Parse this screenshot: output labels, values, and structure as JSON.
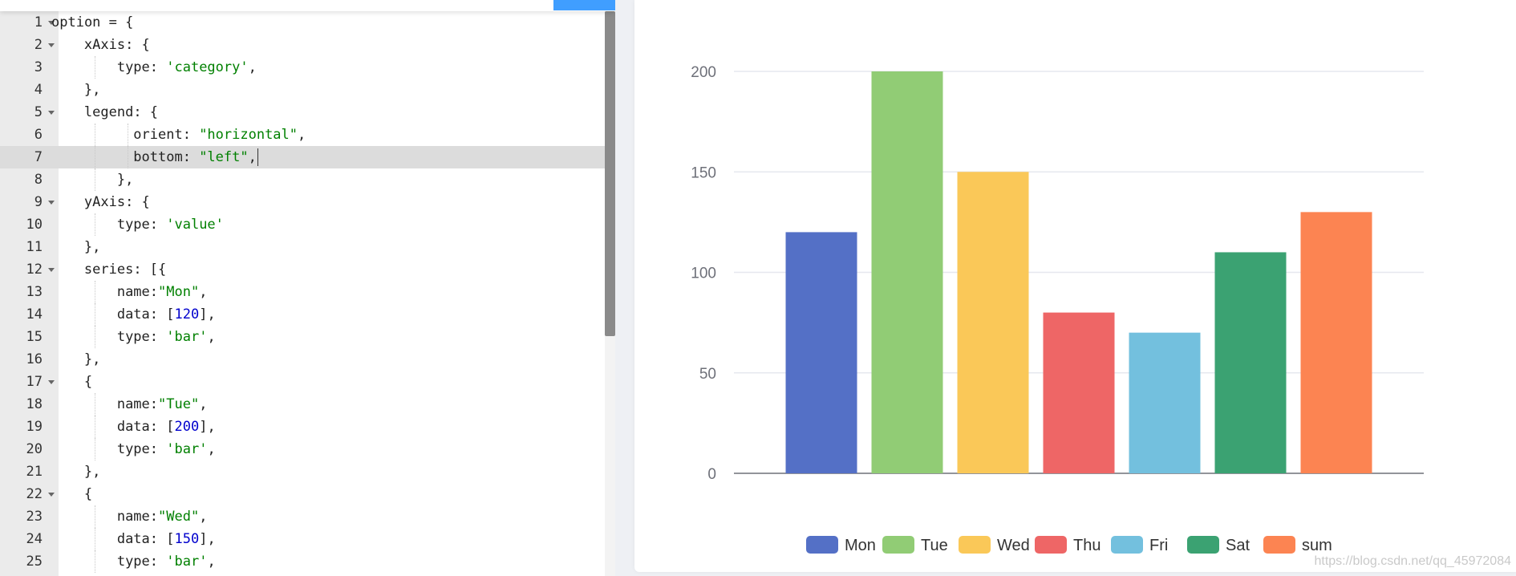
{
  "editor": {
    "active_line": 7,
    "lines": [
      {
        "n": "1",
        "indent": 0,
        "fold": true,
        "tokens": [
          {
            "t": "option = {",
            "c": ""
          }
        ]
      },
      {
        "n": "2",
        "indent": 1,
        "fold": true,
        "tokens": [
          {
            "t": "xAxis: {",
            "c": ""
          }
        ]
      },
      {
        "n": "3",
        "indent": 2,
        "fold": false,
        "tokens": [
          {
            "t": "type: ",
            "c": ""
          },
          {
            "t": "'category'",
            "c": "str"
          },
          {
            "t": ",",
            "c": ""
          }
        ]
      },
      {
        "n": "4",
        "indent": 1,
        "fold": false,
        "tokens": [
          {
            "t": "},",
            "c": ""
          }
        ]
      },
      {
        "n": "5",
        "indent": 1,
        "fold": true,
        "tokens": [
          {
            "t": "legend: {",
            "c": ""
          }
        ]
      },
      {
        "n": "6",
        "indent": 2.5,
        "fold": false,
        "tokens": [
          {
            "t": "orient: ",
            "c": ""
          },
          {
            "t": "\"horizontal\"",
            "c": "str"
          },
          {
            "t": ",",
            "c": ""
          }
        ]
      },
      {
        "n": "7",
        "indent": 2.5,
        "fold": false,
        "tokens": [
          {
            "t": "bottom: ",
            "c": ""
          },
          {
            "t": "\"left\"",
            "c": "str"
          },
          {
            "t": ",",
            "c": ""
          }
        ]
      },
      {
        "n": "8",
        "indent": 2,
        "fold": false,
        "tokens": [
          {
            "t": "},",
            "c": ""
          }
        ]
      },
      {
        "n": "9",
        "indent": 1,
        "fold": true,
        "tokens": [
          {
            "t": "yAxis: {",
            "c": ""
          }
        ]
      },
      {
        "n": "10",
        "indent": 2,
        "fold": false,
        "tokens": [
          {
            "t": "type: ",
            "c": ""
          },
          {
            "t": "'value'",
            "c": "str"
          }
        ]
      },
      {
        "n": "11",
        "indent": 1,
        "fold": false,
        "tokens": [
          {
            "t": "},",
            "c": ""
          }
        ]
      },
      {
        "n": "12",
        "indent": 1,
        "fold": true,
        "tokens": [
          {
            "t": "series: [{",
            "c": ""
          }
        ]
      },
      {
        "n": "13",
        "indent": 2,
        "fold": false,
        "tokens": [
          {
            "t": "name:",
            "c": ""
          },
          {
            "t": "\"Mon\"",
            "c": "str"
          },
          {
            "t": ",",
            "c": ""
          }
        ]
      },
      {
        "n": "14",
        "indent": 2,
        "fold": false,
        "tokens": [
          {
            "t": "data: [",
            "c": ""
          },
          {
            "t": "120",
            "c": "num"
          },
          {
            "t": "],",
            "c": ""
          }
        ]
      },
      {
        "n": "15",
        "indent": 2,
        "fold": false,
        "tokens": [
          {
            "t": "type: ",
            "c": ""
          },
          {
            "t": "'bar'",
            "c": "str"
          },
          {
            "t": ",",
            "c": ""
          }
        ]
      },
      {
        "n": "16",
        "indent": 1,
        "fold": false,
        "tokens": [
          {
            "t": "},",
            "c": ""
          }
        ]
      },
      {
        "n": "17",
        "indent": 1,
        "fold": true,
        "tokens": [
          {
            "t": "{",
            "c": ""
          }
        ]
      },
      {
        "n": "18",
        "indent": 2,
        "fold": false,
        "tokens": [
          {
            "t": "name:",
            "c": ""
          },
          {
            "t": "\"Tue\"",
            "c": "str"
          },
          {
            "t": ",",
            "c": ""
          }
        ]
      },
      {
        "n": "19",
        "indent": 2,
        "fold": false,
        "tokens": [
          {
            "t": "data: [",
            "c": ""
          },
          {
            "t": "200",
            "c": "num"
          },
          {
            "t": "],",
            "c": ""
          }
        ]
      },
      {
        "n": "20",
        "indent": 2,
        "fold": false,
        "tokens": [
          {
            "t": "type: ",
            "c": ""
          },
          {
            "t": "'bar'",
            "c": "str"
          },
          {
            "t": ",",
            "c": ""
          }
        ]
      },
      {
        "n": "21",
        "indent": 1,
        "fold": false,
        "tokens": [
          {
            "t": "},",
            "c": ""
          }
        ]
      },
      {
        "n": "22",
        "indent": 1,
        "fold": true,
        "tokens": [
          {
            "t": "{",
            "c": ""
          }
        ]
      },
      {
        "n": "23",
        "indent": 2,
        "fold": false,
        "tokens": [
          {
            "t": "name:",
            "c": ""
          },
          {
            "t": "\"Wed\"",
            "c": "str"
          },
          {
            "t": ",",
            "c": ""
          }
        ]
      },
      {
        "n": "24",
        "indent": 2,
        "fold": false,
        "tokens": [
          {
            "t": "data: [",
            "c": ""
          },
          {
            "t": "150",
            "c": "num"
          },
          {
            "t": "],",
            "c": ""
          }
        ]
      },
      {
        "n": "25",
        "indent": 2,
        "fold": false,
        "tokens": [
          {
            "t": "type: ",
            "c": ""
          },
          {
            "t": "'bar'",
            "c": "str"
          },
          {
            "t": ",",
            "c": ""
          }
        ]
      }
    ]
  },
  "chart_data": {
    "type": "bar",
    "series": [
      {
        "name": "Mon",
        "values": [
          120
        ],
        "color": "#5470c6"
      },
      {
        "name": "Tue",
        "values": [
          200
        ],
        "color": "#91cc75"
      },
      {
        "name": "Wed",
        "values": [
          150
        ],
        "color": "#fac858"
      },
      {
        "name": "Thu",
        "values": [
          80
        ],
        "color": "#ee6666"
      },
      {
        "name": "Fri",
        "values": [
          70
        ],
        "color": "#73c0de"
      },
      {
        "name": "Sat",
        "values": [
          110
        ],
        "color": "#3ba272"
      },
      {
        "name": "sum",
        "values": [
          130
        ],
        "color": "#fc8452"
      }
    ],
    "y_ticks": [
      "0",
      "50",
      "100",
      "150",
      "200"
    ],
    "ylim": [
      0,
      200
    ],
    "grid": true,
    "legend_position": "bottom-center"
  },
  "watermark": "https://blog.csdn.net/qq_45972084"
}
